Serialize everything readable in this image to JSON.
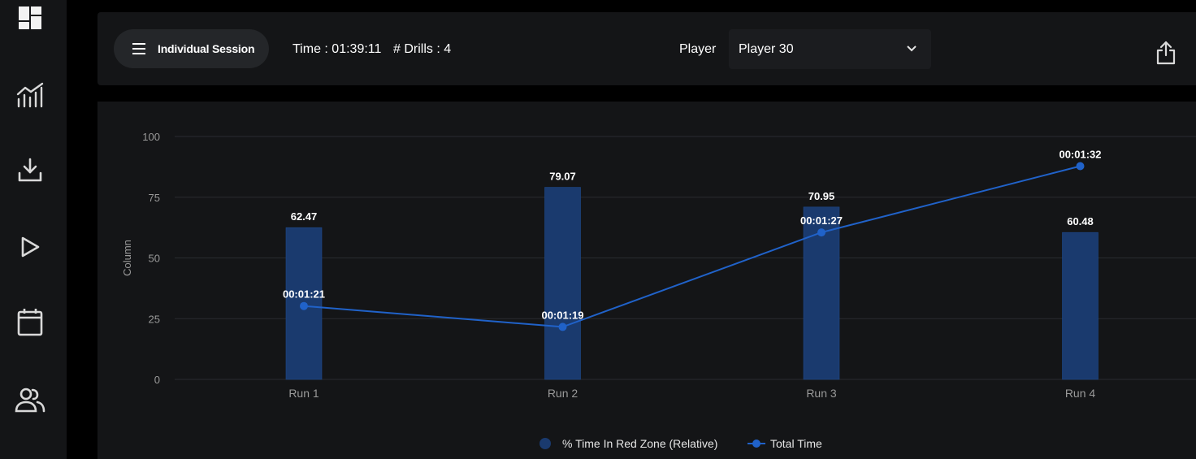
{
  "header": {
    "session_label": "Individual Session",
    "time_text": "Time : 01:39:11",
    "drills_text": "# Drills : 4",
    "player_label": "Player",
    "player_value": "Player 30"
  },
  "sidebar": {
    "items": [
      {
        "icon": "dashboard-icon"
      },
      {
        "icon": "analytics-chart-icon"
      },
      {
        "icon": "download-icon"
      },
      {
        "icon": "play-icon"
      },
      {
        "icon": "calendar-icon"
      },
      {
        "icon": "users-icon"
      }
    ]
  },
  "colors": {
    "bar": "#1a3a6e",
    "line": "#2062c9",
    "grid": "#2a2c30",
    "panel": "#141517"
  },
  "chart_data": {
    "type": "bar",
    "categories": [
      "Run 1",
      "Run 2",
      "Run 3",
      "Run 4"
    ],
    "ylabel": "Column",
    "ylim": [
      0,
      100
    ],
    "yticks": [
      0,
      25,
      50,
      75,
      100
    ],
    "grid": true,
    "legend_position": "bottom",
    "series": [
      {
        "name": "% Time In Red Zone (Relative)",
        "type": "bar",
        "values": [
          62.47,
          79.07,
          70.95,
          60.48
        ],
        "labels": [
          "62.47",
          "79.07",
          "70.95",
          "60.48"
        ]
      },
      {
        "name": "Total Time",
        "type": "line",
        "values": [
          30.2,
          21.6,
          60.5,
          87.8
        ],
        "labels": [
          "00:01:21",
          "00:01:19",
          "00:01:27",
          "00:01:32"
        ]
      }
    ]
  }
}
